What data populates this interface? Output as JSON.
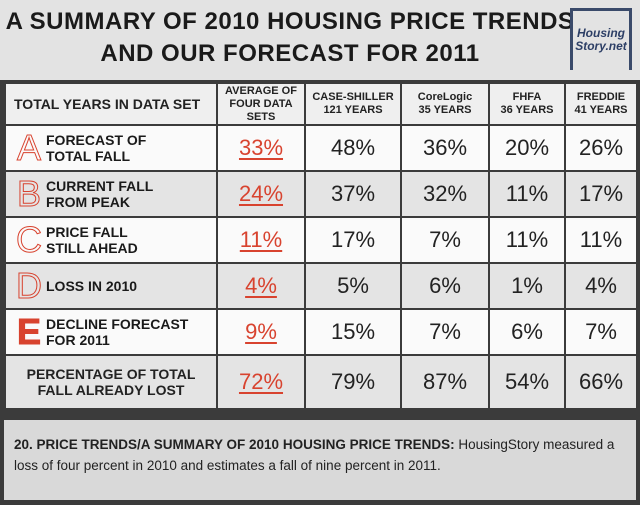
{
  "header": {
    "title_lines": [
      "A SUMMARY OF 2010 HOUSING PRICE TRENDS",
      "AND OUR FORECAST FOR 2011"
    ],
    "logo_lines": [
      "Housing",
      "Story.net"
    ]
  },
  "table": {
    "columns": [
      [
        "TOTAL YEARS IN DATA SET"
      ],
      [
        "AVERAGE OF",
        "FOUR DATA SETS"
      ],
      [
        "CASE-SHILLER",
        "121 YEARS"
      ],
      [
        "CoreLogic",
        "35 YEARS"
      ],
      [
        "FHFA",
        "36 YEARS"
      ],
      [
        "FREDDIE",
        "41 YEARS"
      ]
    ],
    "rows": [
      {
        "letter": "A",
        "label": [
          "FORECAST OF",
          "TOTAL FALL"
        ],
        "values": [
          "33%",
          "48%",
          "36%",
          "20%",
          "26%"
        ]
      },
      {
        "letter": "B",
        "label": [
          "CURRENT FALL",
          "FROM PEAK"
        ],
        "values": [
          "24%",
          "37%",
          "32%",
          "11%",
          "17%"
        ]
      },
      {
        "letter": "C",
        "label": [
          "PRICE FALL",
          "STILL AHEAD"
        ],
        "values": [
          "11%",
          "17%",
          "7%",
          "11%",
          "11%"
        ]
      },
      {
        "letter": "D",
        "label": [
          "LOSS IN 2010"
        ],
        "values": [
          "4%",
          "5%",
          "6%",
          "1%",
          "4%"
        ]
      },
      {
        "letter": "E",
        "label": [
          "DECLINE FORECAST",
          "FOR 2011"
        ],
        "values": [
          "9%",
          "15%",
          "7%",
          "6%",
          "7%"
        ]
      },
      {
        "label": [
          "PERCENTAGE OF TOTAL",
          "FALL ALREADY LOST"
        ],
        "values": [
          "72%",
          "79%",
          "87%",
          "54%",
          "66%"
        ]
      }
    ]
  },
  "caption": {
    "heading": "20. PRICE TRENDS/A SUMMARY OF 2010 HOUSING PRICE TRENDS:",
    "text": "HousingStory measured a loss of four percent in 2010 and estimates a fall of nine percent in 2011."
  }
}
